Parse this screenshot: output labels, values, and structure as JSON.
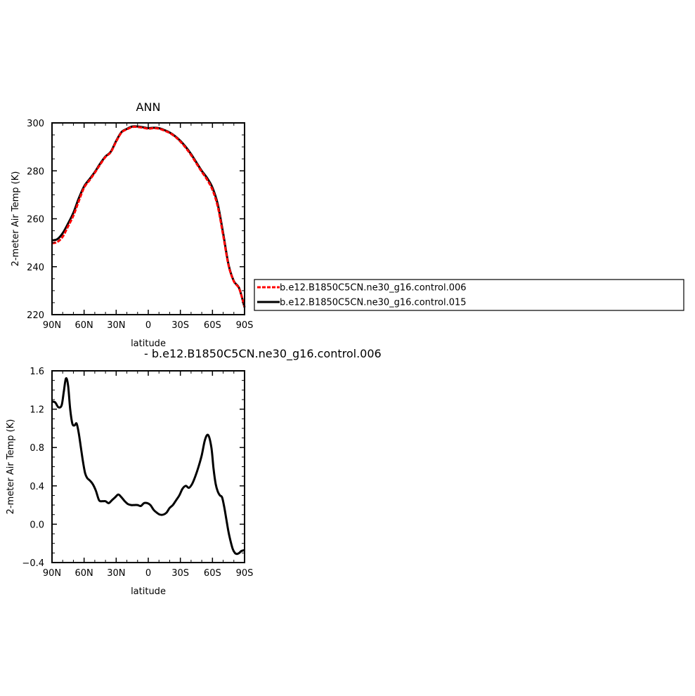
{
  "chart_data": [
    {
      "type": "line",
      "title": "ANN",
      "xlabel": "latitude",
      "ylabel": "2-meter Air Temp (K)",
      "xlim": [
        90,
        -90
      ],
      "ylim": [
        220,
        300
      ],
      "x_tick_values": [
        90,
        60,
        30,
        0,
        -30,
        -60,
        -90
      ],
      "x_tick_labels": [
        "90N",
        "60N",
        "30N",
        "0",
        "30S",
        "60S",
        "90S"
      ],
      "y_tick_values": [
        220,
        240,
        260,
        280,
        300
      ],
      "y_tick_labels": [
        "220",
        "240",
        "260",
        "280",
        "300"
      ],
      "grid": false,
      "legend_position": "right",
      "series": [
        {
          "name": "b.e12.B1850C5CN.ne30_g16.control.015",
          "color": "#000000",
          "dash": "solid",
          "x": [
            90,
            85,
            80,
            75,
            70,
            65,
            60,
            55,
            50,
            45,
            40,
            35,
            30,
            25,
            20,
            15,
            10,
            5,
            0,
            -5,
            -10,
            -15,
            -20,
            -25,
            -30,
            -35,
            -40,
            -45,
            -50,
            -55,
            -60,
            -65,
            -70,
            -75,
            -80,
            -85,
            -90
          ],
          "y": [
            251.0,
            251.5,
            254.0,
            258.0,
            262.5,
            268.5,
            273.5,
            276.5,
            279.5,
            283.0,
            286.0,
            288.0,
            292.5,
            296.2,
            297.5,
            298.5,
            298.5,
            298.2,
            297.8,
            298.0,
            297.8,
            297.0,
            296.0,
            294.5,
            292.5,
            290.0,
            287.0,
            283.5,
            280.0,
            277.0,
            273.0,
            266.0,
            254.0,
            241.0,
            234.0,
            231.0,
            223.0
          ]
        },
        {
          "name": "b.e12.B1850C5CN.ne30_g16.control.006",
          "color": "#ff0000",
          "dash": "dashed",
          "x": [
            90,
            85,
            80,
            75,
            70,
            65,
            60,
            55,
            50,
            45,
            40,
            35,
            30,
            25,
            20,
            15,
            10,
            5,
            0,
            -5,
            -10,
            -15,
            -20,
            -25,
            -30,
            -35,
            -40,
            -45,
            -50,
            -55,
            -60,
            -65,
            -70,
            -75,
            -80,
            -85,
            -90
          ],
          "y": [
            249.8,
            250.3,
            252.5,
            256.8,
            261.3,
            267.3,
            273.0,
            276.0,
            279.2,
            282.6,
            285.8,
            287.8,
            292.2,
            296.0,
            297.3,
            298.3,
            298.3,
            298.0,
            297.6,
            297.8,
            297.6,
            296.8,
            295.8,
            294.3,
            292.2,
            289.6,
            286.6,
            283.1,
            279.6,
            276.3,
            272.1,
            265.0,
            253.1,
            240.6,
            233.9,
            230.8,
            223.3
          ]
        }
      ]
    },
    {
      "type": "line",
      "title": "- b.e12.B1850C5CN.ne30_g16.control.006",
      "xlabel": "latitude",
      "ylabel": "2-meter Air Temp (K)",
      "xlim": [
        90,
        -90
      ],
      "ylim": [
        -0.4,
        1.6
      ],
      "x_tick_values": [
        90,
        60,
        30,
        0,
        -30,
        -60,
        -90
      ],
      "x_tick_labels": [
        "90N",
        "60N",
        "30N",
        "0",
        "30S",
        "60S",
        "90S"
      ],
      "y_tick_values": [
        -0.4,
        0.0,
        0.4,
        0.8,
        1.2,
        1.6
      ],
      "y_tick_labels": [
        "−0.4",
        "0.0",
        "0.4",
        "0.8",
        "1.2",
        "1.6"
      ],
      "grid": false,
      "series": [
        {
          "color": "#000000",
          "dash": "solid",
          "x": [
            90,
            87,
            84,
            81,
            79,
            77,
            75,
            73,
            71,
            69,
            67,
            65,
            63,
            61,
            59,
            57,
            55,
            52,
            49,
            46,
            43,
            40,
            37,
            34,
            31,
            28,
            25,
            22,
            19,
            16,
            13,
            10,
            7,
            4,
            1,
            -2,
            -5,
            -8,
            -11,
            -14,
            -17,
            -20,
            -23,
            -26,
            -29,
            -32,
            -35,
            -38,
            -41,
            -44,
            -47,
            -50,
            -53,
            -56,
            -59,
            -61,
            -63,
            -65,
            -67,
            -69,
            -71,
            -73,
            -75,
            -77,
            -79,
            -81,
            -83,
            -85,
            -87,
            -90
          ],
          "y": [
            1.28,
            1.27,
            1.22,
            1.24,
            1.38,
            1.52,
            1.45,
            1.2,
            1.05,
            1.03,
            1.05,
            0.95,
            0.8,
            0.65,
            0.53,
            0.48,
            0.46,
            0.42,
            0.35,
            0.25,
            0.24,
            0.24,
            0.22,
            0.25,
            0.28,
            0.31,
            0.28,
            0.24,
            0.21,
            0.2,
            0.2,
            0.2,
            0.19,
            0.22,
            0.22,
            0.2,
            0.15,
            0.12,
            0.1,
            0.1,
            0.12,
            0.17,
            0.2,
            0.25,
            0.3,
            0.37,
            0.4,
            0.38,
            0.42,
            0.5,
            0.6,
            0.72,
            0.88,
            0.93,
            0.8,
            0.58,
            0.42,
            0.34,
            0.3,
            0.28,
            0.18,
            0.05,
            -0.08,
            -0.18,
            -0.26,
            -0.3,
            -0.31,
            -0.3,
            -0.28,
            -0.27
          ]
        }
      ]
    }
  ]
}
